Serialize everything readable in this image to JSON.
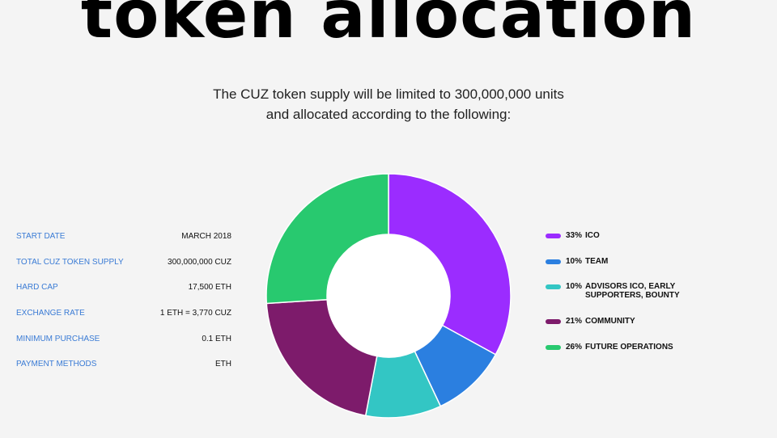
{
  "page": {
    "title": "token allocation",
    "subtitle_line1": "The CUZ token supply will be limited to 300,000,000 units",
    "subtitle_line2": "and allocated according to the following:"
  },
  "info": [
    {
      "label": "START DATE",
      "value": "MARCH 2018"
    },
    {
      "label": "TOTAL CUZ TOKEN SUPPLY",
      "value": "300,000,000 CUZ"
    },
    {
      "label": "HARD CAP",
      "value": "17,500 ETH"
    },
    {
      "label": "EXCHANGE RATE",
      "value": "1 ETH = 3,770 CUZ"
    },
    {
      "label": "MINIMUM PURCHASE",
      "value": "0.1 ETH"
    },
    {
      "label": "PAYMENT METHODS",
      "value": "ETH"
    }
  ],
  "chart_data": {
    "type": "pie",
    "donut": true,
    "categories": [
      "ICO",
      "TEAM",
      "ADVISORS ICO, EARLY SUPPORTERS, BOUNTY",
      "COMMUNITY",
      "FUTURE OPERATIONS"
    ],
    "values": [
      33,
      10,
      10,
      21,
      26
    ],
    "value_labels": [
      "33%",
      "10%",
      "10%",
      "21%",
      "26%"
    ],
    "colors": [
      "#9b2cff",
      "#2b7fe0",
      "#33c6c4",
      "#7d1b6b",
      "#28c96f"
    ],
    "legend_position": "right"
  }
}
